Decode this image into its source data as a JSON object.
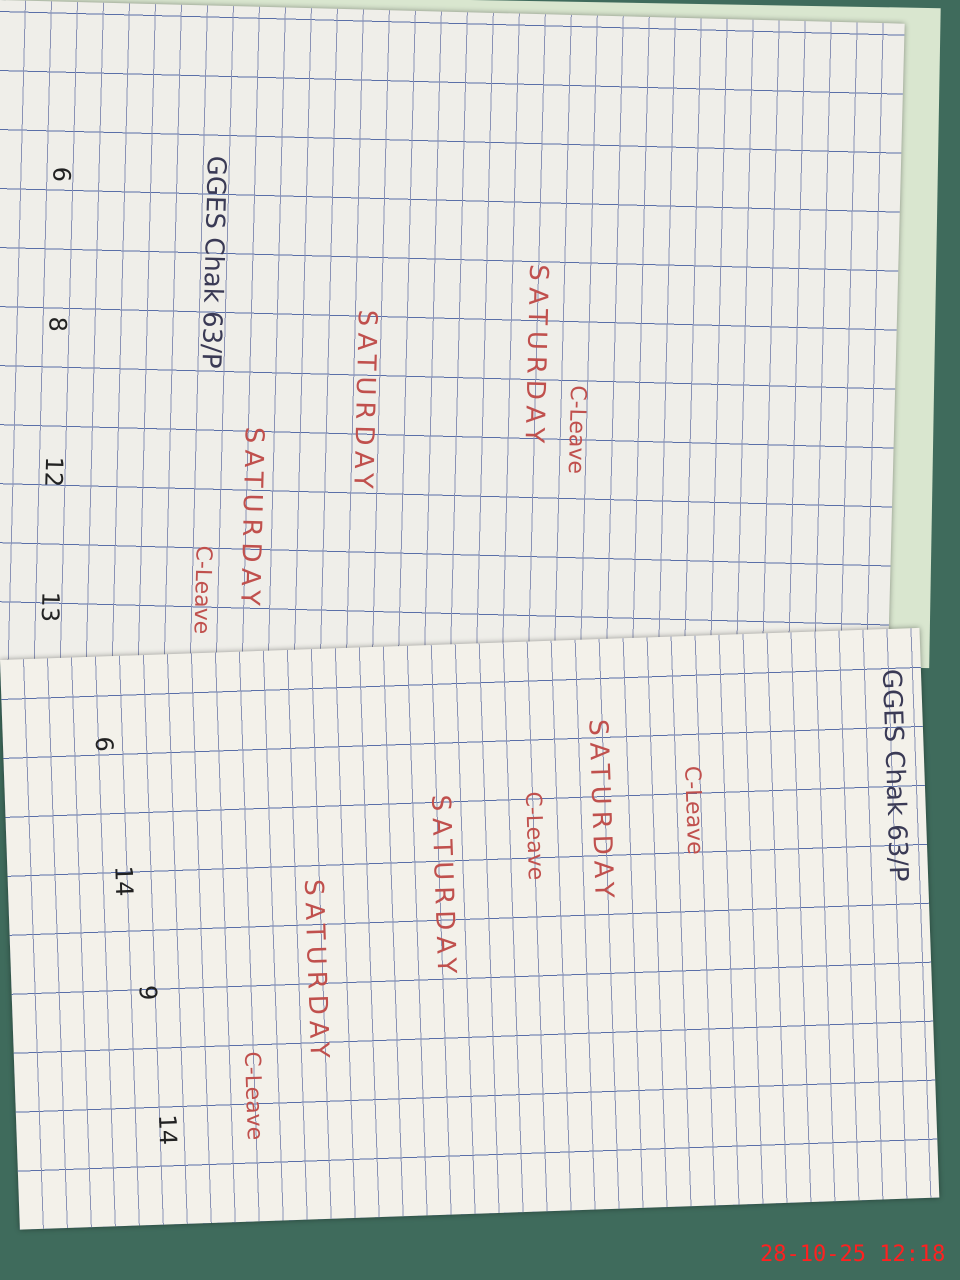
{
  "register": {
    "left_page": {
      "title": "GGES Chak 63/P",
      "marks": [
        "SATURDAY",
        "SATURDAY",
        "SATURDAY",
        "C-Leave",
        "C-Leave"
      ],
      "totals": [
        "6",
        "8",
        "12",
        "13"
      ]
    },
    "right_page": {
      "title": "GGES Chak 63/P",
      "marks": [
        "SATURDAY",
        "SATURDAY",
        "SATURDAY",
        "C-Leave",
        "C-Leave",
        "C-Leave"
      ],
      "totals": [
        "6",
        "14",
        "9",
        "14"
      ]
    }
  },
  "timestamp": "28-10-25  12:18"
}
